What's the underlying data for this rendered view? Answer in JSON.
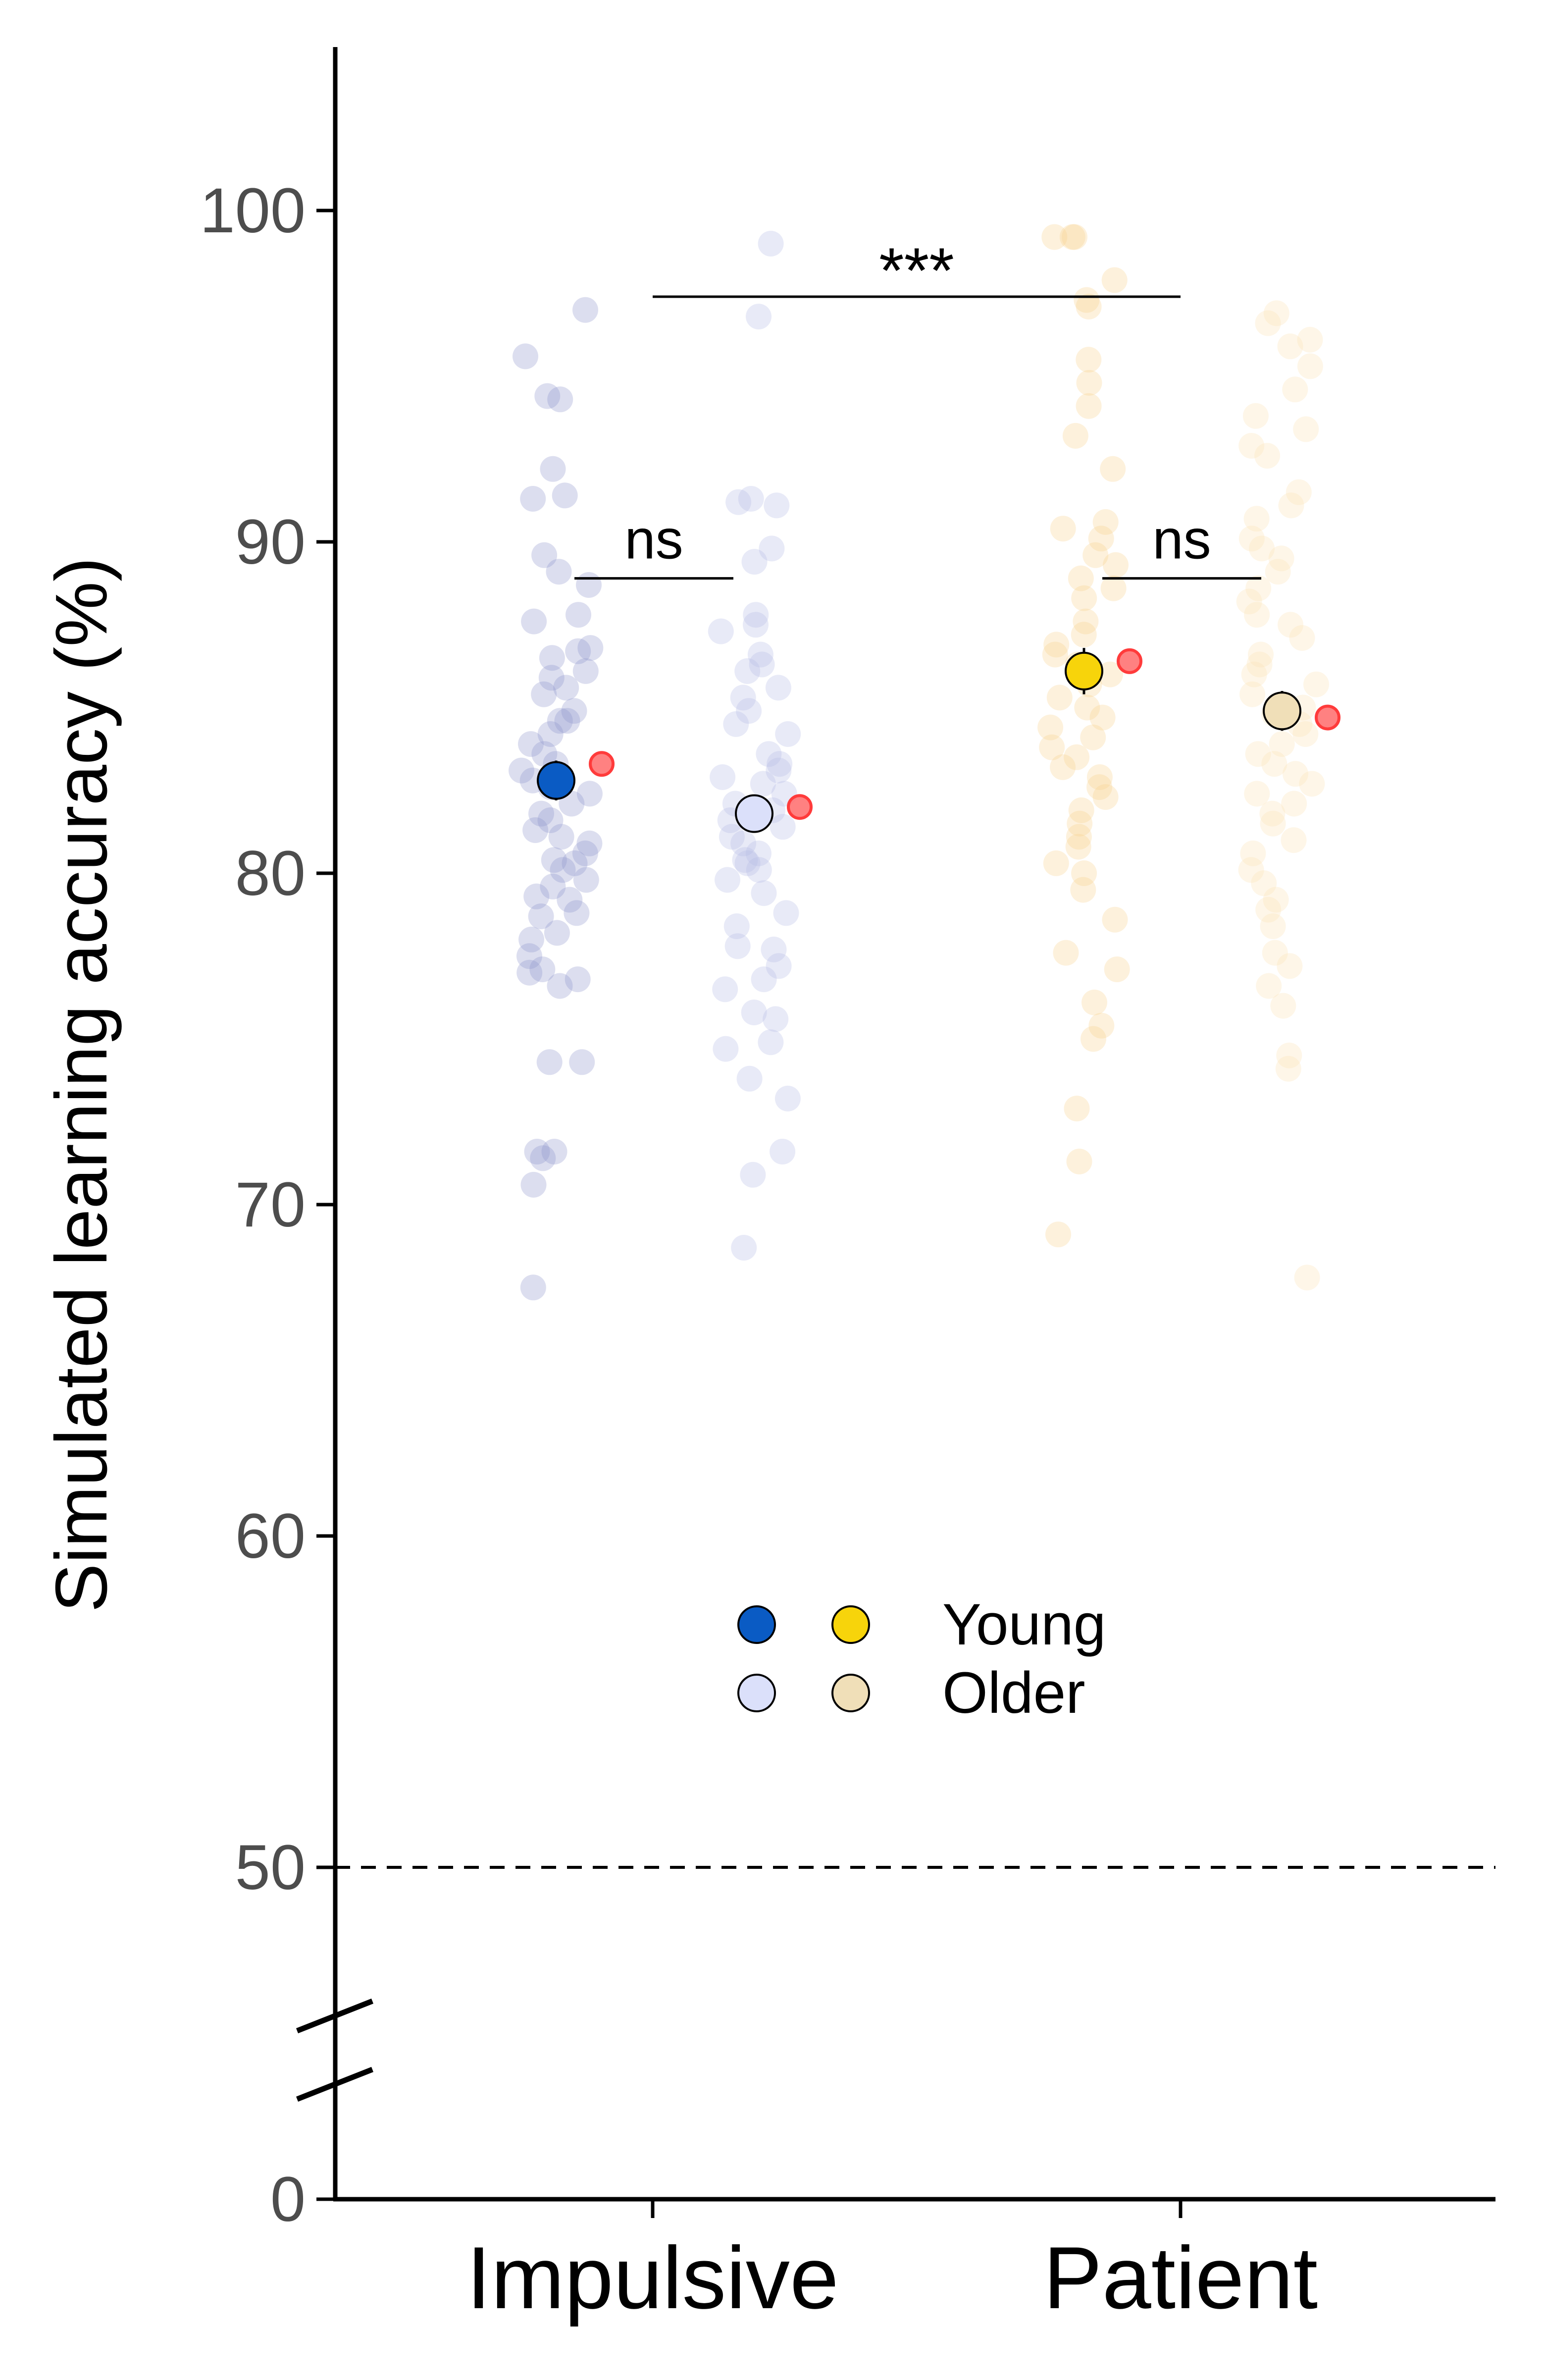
{
  "chart_data": {
    "type": "scatter",
    "title": "",
    "ylabel": "Simulated learning accuracy (%)",
    "xlabel": "",
    "categories": [
      "Impulsive",
      "Patient"
    ],
    "yticks": [
      0,
      50,
      60,
      70,
      80,
      90,
      100
    ],
    "ylim": [
      0,
      105
    ],
    "axis_break": "between 0 and 50",
    "chance_line": 50,
    "grid": false,
    "legend": {
      "placement": "center",
      "entries": [
        {
          "label": "Young",
          "colors": [
            "#0a5bc4",
            "#f7d40b"
          ]
        },
        {
          "label": "Older",
          "colors": [
            "#dbe0fa",
            "#f0dfb8"
          ]
        }
      ]
    },
    "series": [
      {
        "category": "Impulsive",
        "group": "Young",
        "color": "#0a5bc4",
        "raw_color": "#8a92c9",
        "mean": 82.8,
        "sem": 0.6,
        "model_mean": 83.3,
        "points": [
          97.0,
          95.6,
          94.3,
          94.4,
          92.2,
          91.4,
          91.3,
          89.6,
          89.1,
          88.7,
          87.8,
          87.6,
          86.8,
          86.7,
          86.5,
          86.1,
          85.9,
          85.6,
          85.4,
          84.9,
          84.6,
          84.6,
          84.2,
          83.9,
          83.6,
          83.3,
          83.1,
          82.8,
          82.6,
          82.4,
          82.1,
          81.8,
          81.6,
          81.3,
          81.1,
          80.9,
          80.6,
          80.4,
          80.3,
          80.1,
          79.8,
          79.6,
          79.3,
          79.2,
          78.8,
          78.7,
          78.2,
          78.0,
          77.5,
          77.1,
          77.0,
          76.8,
          76.6,
          74.3,
          74.3,
          71.6,
          71.6,
          71.4,
          70.6,
          67.5
        ]
      },
      {
        "category": "Impulsive",
        "group": "Older",
        "color": "#dbe0fa",
        "raw_color": "#b3b8e6",
        "mean": 81.8,
        "sem": 0.5,
        "model_mean": 82.0,
        "points": [
          99.0,
          96.8,
          91.3,
          91.2,
          91.1,
          89.8,
          89.4,
          87.8,
          87.5,
          87.3,
          86.6,
          86.3,
          86.1,
          85.6,
          85.3,
          84.9,
          84.5,
          84.2,
          83.6,
          83.3,
          83.1,
          82.9,
          82.7,
          82.4,
          82.1,
          81.9,
          81.6,
          81.4,
          81.1,
          80.9,
          80.6,
          80.4,
          80.3,
          80.1,
          79.8,
          79.4,
          78.8,
          78.4,
          77.8,
          77.7,
          77.2,
          76.8,
          76.5,
          75.8,
          75.6,
          74.9,
          74.7,
          73.8,
          73.2,
          71.6,
          70.9,
          68.7
        ]
      },
      {
        "category": "Patient",
        "group": "Young",
        "color": "#f7d40b",
        "raw_color": "#f8cf8c",
        "mean": 86.1,
        "sem": 0.7,
        "model_mean": 86.4,
        "points": [
          99.2,
          99.2,
          99.2,
          97.9,
          97.3,
          97.1,
          95.5,
          94.8,
          94.1,
          93.2,
          92.2,
          90.6,
          90.4,
          90.1,
          89.6,
          89.3,
          88.9,
          88.6,
          88.3,
          87.6,
          87.2,
          86.9,
          86.6,
          86.3,
          86.0,
          85.7,
          85.3,
          85.0,
          84.7,
          84.4,
          84.1,
          83.8,
          83.5,
          83.2,
          82.9,
          82.6,
          82.3,
          81.9,
          81.5,
          81.1,
          80.8,
          80.3,
          80.0,
          79.5,
          78.6,
          77.6,
          77.1,
          76.1,
          75.4,
          75.0,
          72.9,
          71.3,
          69.1
        ]
      },
      {
        "category": "Patient",
        "group": "Older",
        "color": "#f0dfb8",
        "raw_color": "#fbe0b3",
        "mean": 84.9,
        "sem": 0.6,
        "model_mean": 84.7,
        "points": [
          96.9,
          96.6,
          96.1,
          95.9,
          95.3,
          94.6,
          93.8,
          93.4,
          92.9,
          92.6,
          91.5,
          91.1,
          90.7,
          90.1,
          89.8,
          89.5,
          89.1,
          88.6,
          88.2,
          87.8,
          87.5,
          87.1,
          86.6,
          86.3,
          86.0,
          85.7,
          85.4,
          85.0,
          84.8,
          84.5,
          84.2,
          83.9,
          83.6,
          83.3,
          83.0,
          82.7,
          82.4,
          82.1,
          81.8,
          81.5,
          81.0,
          80.6,
          80.1,
          79.7,
          79.2,
          78.9,
          78.4,
          77.6,
          77.2,
          76.6,
          76.0,
          74.5,
          74.1,
          67.8
        ]
      }
    ],
    "annotations": [
      {
        "text": "***",
        "between": [
          "Impulsive",
          "Patient"
        ],
        "y": 97.4
      },
      {
        "text": "ns",
        "between": [
          "Impulsive Young",
          "Impulsive Older"
        ],
        "y": 88.9
      },
      {
        "text": "ns",
        "between": [
          "Patient Young",
          "Patient Older"
        ],
        "y": 88.9
      }
    ]
  }
}
